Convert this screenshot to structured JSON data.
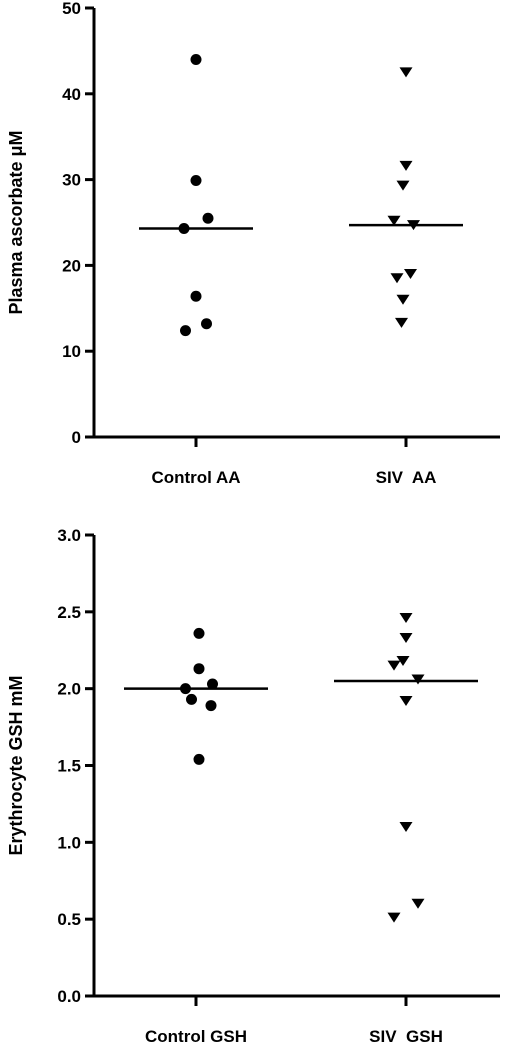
{
  "colors": {
    "ink": "#000000",
    "background": "#ffffff"
  },
  "chart_data": [
    {
      "type": "scatter",
      "title": "",
      "ylabel": "Plasma ascorbate μM",
      "xlabel": "",
      "ylim": [
        0,
        50
      ],
      "yticks": [
        "0",
        "10",
        "20",
        "30",
        "40",
        "50"
      ],
      "grid": false,
      "legend": "none",
      "categories": [
        "Control AA",
        "SIV  AA"
      ],
      "series": [
        {
          "category": "Control AA",
          "marker": "circle",
          "median": 24.3,
          "points": [
            {
              "x": 0.0,
              "y": 44.0
            },
            {
              "x": 0.0,
              "y": 29.9
            },
            {
              "x": 0.08,
              "y": 25.5
            },
            {
              "x": -0.08,
              "y": 24.3
            },
            {
              "x": 0.0,
              "y": 16.4
            },
            {
              "x": 0.07,
              "y": 13.2
            },
            {
              "x": -0.07,
              "y": 12.4
            }
          ]
        },
        {
          "category": "SIV  AA",
          "marker": "triangle-down",
          "median": 24.7,
          "points": [
            {
              "x": 0.0,
              "y": 42.5
            },
            {
              "x": 0.0,
              "y": 31.6
            },
            {
              "x": -0.02,
              "y": 29.3
            },
            {
              "x": -0.08,
              "y": 25.2
            },
            {
              "x": 0.05,
              "y": 24.7
            },
            {
              "x": 0.03,
              "y": 19.0
            },
            {
              "x": -0.06,
              "y": 18.5
            },
            {
              "x": -0.02,
              "y": 16.0
            },
            {
              "x": -0.03,
              "y": 13.3
            }
          ]
        }
      ]
    },
    {
      "type": "scatter",
      "title": "",
      "ylabel": "Erythrocyte GSH mM",
      "xlabel": "",
      "ylim": [
        0,
        3
      ],
      "yticks": [
        "0.0",
        "0.5",
        "1.0",
        "1.5",
        "2.0",
        "2.5",
        "3.0"
      ],
      "grid": false,
      "legend": "none",
      "categories": [
        "Control GSH",
        "SIV  GSH"
      ],
      "series": [
        {
          "category": "Control GSH",
          "marker": "circle",
          "median": 2.0,
          "points": [
            {
              "x": 0.02,
              "y": 2.36
            },
            {
              "x": 0.02,
              "y": 2.13
            },
            {
              "x": 0.11,
              "y": 2.03
            },
            {
              "x": -0.07,
              "y": 2.0
            },
            {
              "x": -0.03,
              "y": 1.93
            },
            {
              "x": 0.1,
              "y": 1.89
            },
            {
              "x": 0.02,
              "y": 1.54
            }
          ]
        },
        {
          "category": "SIV  GSH",
          "marker": "triangle-down",
          "median": 2.05,
          "points": [
            {
              "x": 0.0,
              "y": 2.46
            },
            {
              "x": 0.0,
              "y": 2.33
            },
            {
              "x": -0.08,
              "y": 2.15
            },
            {
              "x": -0.02,
              "y": 2.18
            },
            {
              "x": 0.08,
              "y": 2.06
            },
            {
              "x": 0.0,
              "y": 1.92
            },
            {
              "x": 0.0,
              "y": 1.1
            },
            {
              "x": 0.08,
              "y": 0.6
            },
            {
              "x": -0.08,
              "y": 0.51
            }
          ]
        }
      ]
    }
  ]
}
